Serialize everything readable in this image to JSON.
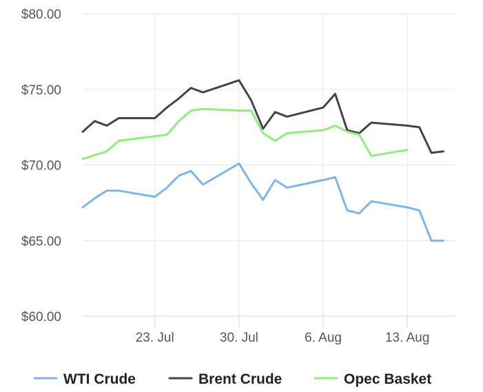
{
  "chart_data": {
    "type": "line",
    "title": "",
    "xlabel": "",
    "ylabel": "",
    "ylim": [
      60,
      80
    ],
    "y_ticks": [
      {
        "value": 60,
        "label": "$60.00"
      },
      {
        "value": 65,
        "label": "$65.00"
      },
      {
        "value": 70,
        "label": "$70.00"
      },
      {
        "value": 75,
        "label": "$75.00"
      },
      {
        "value": 80,
        "label": "$80.00"
      }
    ],
    "x_range": [
      "2018-07-17",
      "2018-08-17"
    ],
    "x_ticks": [
      {
        "date": "2018-07-23",
        "label": "23. Jul"
      },
      {
        "date": "2018-07-30",
        "label": "30. Jul"
      },
      {
        "date": "2018-08-06",
        "label": "6. Aug"
      },
      {
        "date": "2018-08-13",
        "label": "13. Aug"
      }
    ],
    "grid": true,
    "legend_position": "bottom",
    "series": [
      {
        "name": "WTI Crude",
        "color": "#7cb5ec",
        "points": [
          [
            "2018-07-17",
            67.2
          ],
          [
            "2018-07-18",
            67.8
          ],
          [
            "2018-07-19",
            68.3
          ],
          [
            "2018-07-20",
            68.3
          ],
          [
            "2018-07-23",
            67.9
          ],
          [
            "2018-07-24",
            68.5
          ],
          [
            "2018-07-25",
            69.3
          ],
          [
            "2018-07-26",
            69.6
          ],
          [
            "2018-07-27",
            68.7
          ],
          [
            "2018-07-30",
            70.1
          ],
          [
            "2018-07-31",
            68.8
          ],
          [
            "2018-08-01",
            67.7
          ],
          [
            "2018-08-02",
            69.0
          ],
          [
            "2018-08-03",
            68.5
          ],
          [
            "2018-08-06",
            69.0
          ],
          [
            "2018-08-07",
            69.2
          ],
          [
            "2018-08-08",
            67.0
          ],
          [
            "2018-08-09",
            66.8
          ],
          [
            "2018-08-10",
            67.6
          ],
          [
            "2018-08-13",
            67.2
          ],
          [
            "2018-08-14",
            67.0
          ],
          [
            "2018-08-15",
            65.0
          ],
          [
            "2018-08-16",
            65.0
          ]
        ]
      },
      {
        "name": "Brent Crude",
        "color": "#434348",
        "points": [
          [
            "2018-07-17",
            72.2
          ],
          [
            "2018-07-18",
            72.9
          ],
          [
            "2018-07-19",
            72.6
          ],
          [
            "2018-07-20",
            73.1
          ],
          [
            "2018-07-23",
            73.1
          ],
          [
            "2018-07-24",
            73.8
          ],
          [
            "2018-07-25",
            74.4
          ],
          [
            "2018-07-26",
            75.1
          ],
          [
            "2018-07-27",
            74.8
          ],
          [
            "2018-07-30",
            75.6
          ],
          [
            "2018-07-31",
            74.3
          ],
          [
            "2018-08-01",
            72.4
          ],
          [
            "2018-08-02",
            73.5
          ],
          [
            "2018-08-03",
            73.2
          ],
          [
            "2018-08-06",
            73.8
          ],
          [
            "2018-08-07",
            74.7
          ],
          [
            "2018-08-08",
            72.3
          ],
          [
            "2018-08-09",
            72.1
          ],
          [
            "2018-08-10",
            72.8
          ],
          [
            "2018-08-13",
            72.6
          ],
          [
            "2018-08-14",
            72.5
          ],
          [
            "2018-08-15",
            70.8
          ],
          [
            "2018-08-16",
            70.9
          ]
        ]
      },
      {
        "name": "Opec Basket",
        "color": "#90ed7d",
        "points": [
          [
            "2018-07-17",
            70.4
          ],
          [
            "2018-07-19",
            70.9
          ],
          [
            "2018-07-20",
            71.6
          ],
          [
            "2018-07-23",
            71.9
          ],
          [
            "2018-07-24",
            72.0
          ],
          [
            "2018-07-25",
            72.9
          ],
          [
            "2018-07-26",
            73.6
          ],
          [
            "2018-07-27",
            73.7
          ],
          [
            "2018-07-30",
            73.6
          ],
          [
            "2018-07-31",
            73.6
          ],
          [
            "2018-08-01",
            72.1
          ],
          [
            "2018-08-02",
            71.6
          ],
          [
            "2018-08-03",
            72.1
          ],
          [
            "2018-08-06",
            72.3
          ],
          [
            "2018-08-07",
            72.6
          ],
          [
            "2018-08-08",
            72.2
          ],
          [
            "2018-08-09",
            72.0
          ],
          [
            "2018-08-10",
            70.6
          ],
          [
            "2018-08-13",
            71.0
          ]
        ]
      }
    ]
  },
  "colors": {
    "grid": "#e6e6e6",
    "axis": "#ccd6eb",
    "label": "#555555"
  }
}
